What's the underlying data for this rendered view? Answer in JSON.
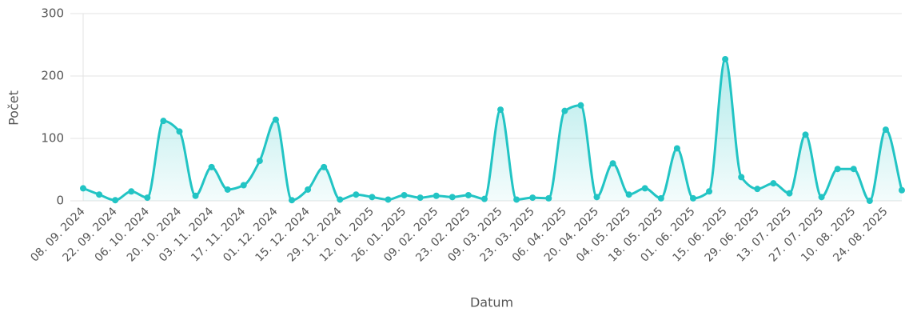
{
  "chart_data": {
    "type": "line",
    "x_label": "Datum",
    "y_label": "Počet",
    "categories": [
      "08. 09. 2024",
      null,
      "22. 09. 2024",
      null,
      "06. 10. 2024",
      null,
      "20. 10. 2024",
      null,
      "03. 11. 2024",
      null,
      "17. 11. 2024",
      null,
      "01. 12. 2024",
      null,
      "15. 12. 2024",
      null,
      "29. 12. 2024",
      null,
      "12. 01. 2025",
      null,
      "26. 01. 2025",
      null,
      "09. 02. 2025",
      null,
      "23. 02. 2025",
      null,
      "09. 03. 2025",
      null,
      "23. 03. 2025",
      null,
      "06. 04. 2025",
      null,
      "20. 04. 2025",
      null,
      "04. 05. 2025",
      null,
      "18. 05. 2025",
      null,
      "01. 06. 2025",
      null,
      "15. 06. 2025",
      null,
      "29. 06. 2025",
      null,
      "13. 07. 2025",
      null,
      "27. 07. 2025",
      null,
      "10. 08. 2025",
      null,
      "24. 08. 2025",
      null
    ],
    "series": [
      {
        "color": "#22c4c4",
        "values": [
          20,
          10,
          1,
          15,
          5,
          128,
          111,
          8,
          54,
          18,
          25,
          64,
          130,
          1,
          18,
          54,
          2,
          10,
          6,
          2,
          9,
          5,
          8,
          6,
          9,
          3,
          146,
          2,
          5,
          4,
          144,
          153,
          6,
          60,
          10,
          20,
          4,
          84,
          4,
          15,
          227,
          38,
          19,
          28,
          12,
          106,
          6,
          51,
          51,
          0,
          114,
          17
        ]
      }
    ],
    "ylim": [
      0,
      300
    ],
    "yticks": [
      0,
      100,
      200,
      300
    ],
    "grid": true
  }
}
